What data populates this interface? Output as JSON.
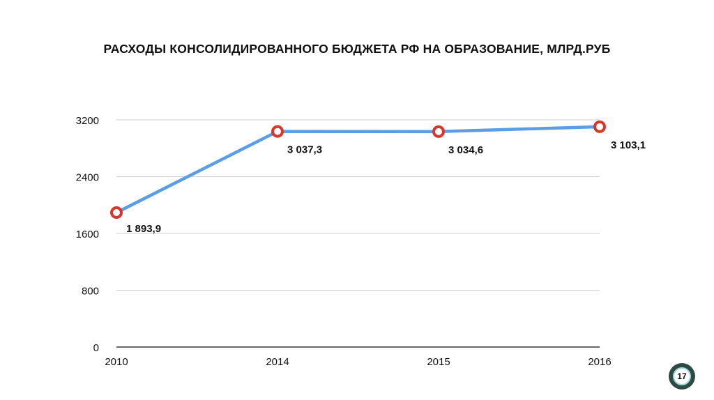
{
  "title": "РАСХОДЫ КОНСОЛИДИРОВАННОГО БЮДЖЕТА РФ НА ОБРАЗОВАНИЕ, МЛРД.РУБ",
  "page_number": "17",
  "chart_data": {
    "type": "line",
    "title": "РАСХОДЫ КОНСОЛИДИРОВАННОГО БЮДЖЕТА РФ НА ОБРАЗОВАНИЕ, МЛРД.РУБ",
    "categories": [
      "2010",
      "2014",
      "2015",
      "2016"
    ],
    "series": [
      {
        "values": [
          1893.9,
          3037.3,
          3034.6,
          3103.1
        ],
        "data_labels": [
          "1 893,9",
          "3 037,3",
          "3 034,6",
          "3 103,1"
        ]
      }
    ],
    "y_ticks": [
      "0",
      "800",
      "1600",
      "2400",
      "3200"
    ],
    "ylim": [
      0,
      3200
    ],
    "grid": true,
    "legend": "none",
    "xlabel": "",
    "ylabel": "",
    "colors": {
      "line": "#5b9ee6",
      "marker": "#d9362b",
      "grid": "#d0d0d0"
    }
  }
}
